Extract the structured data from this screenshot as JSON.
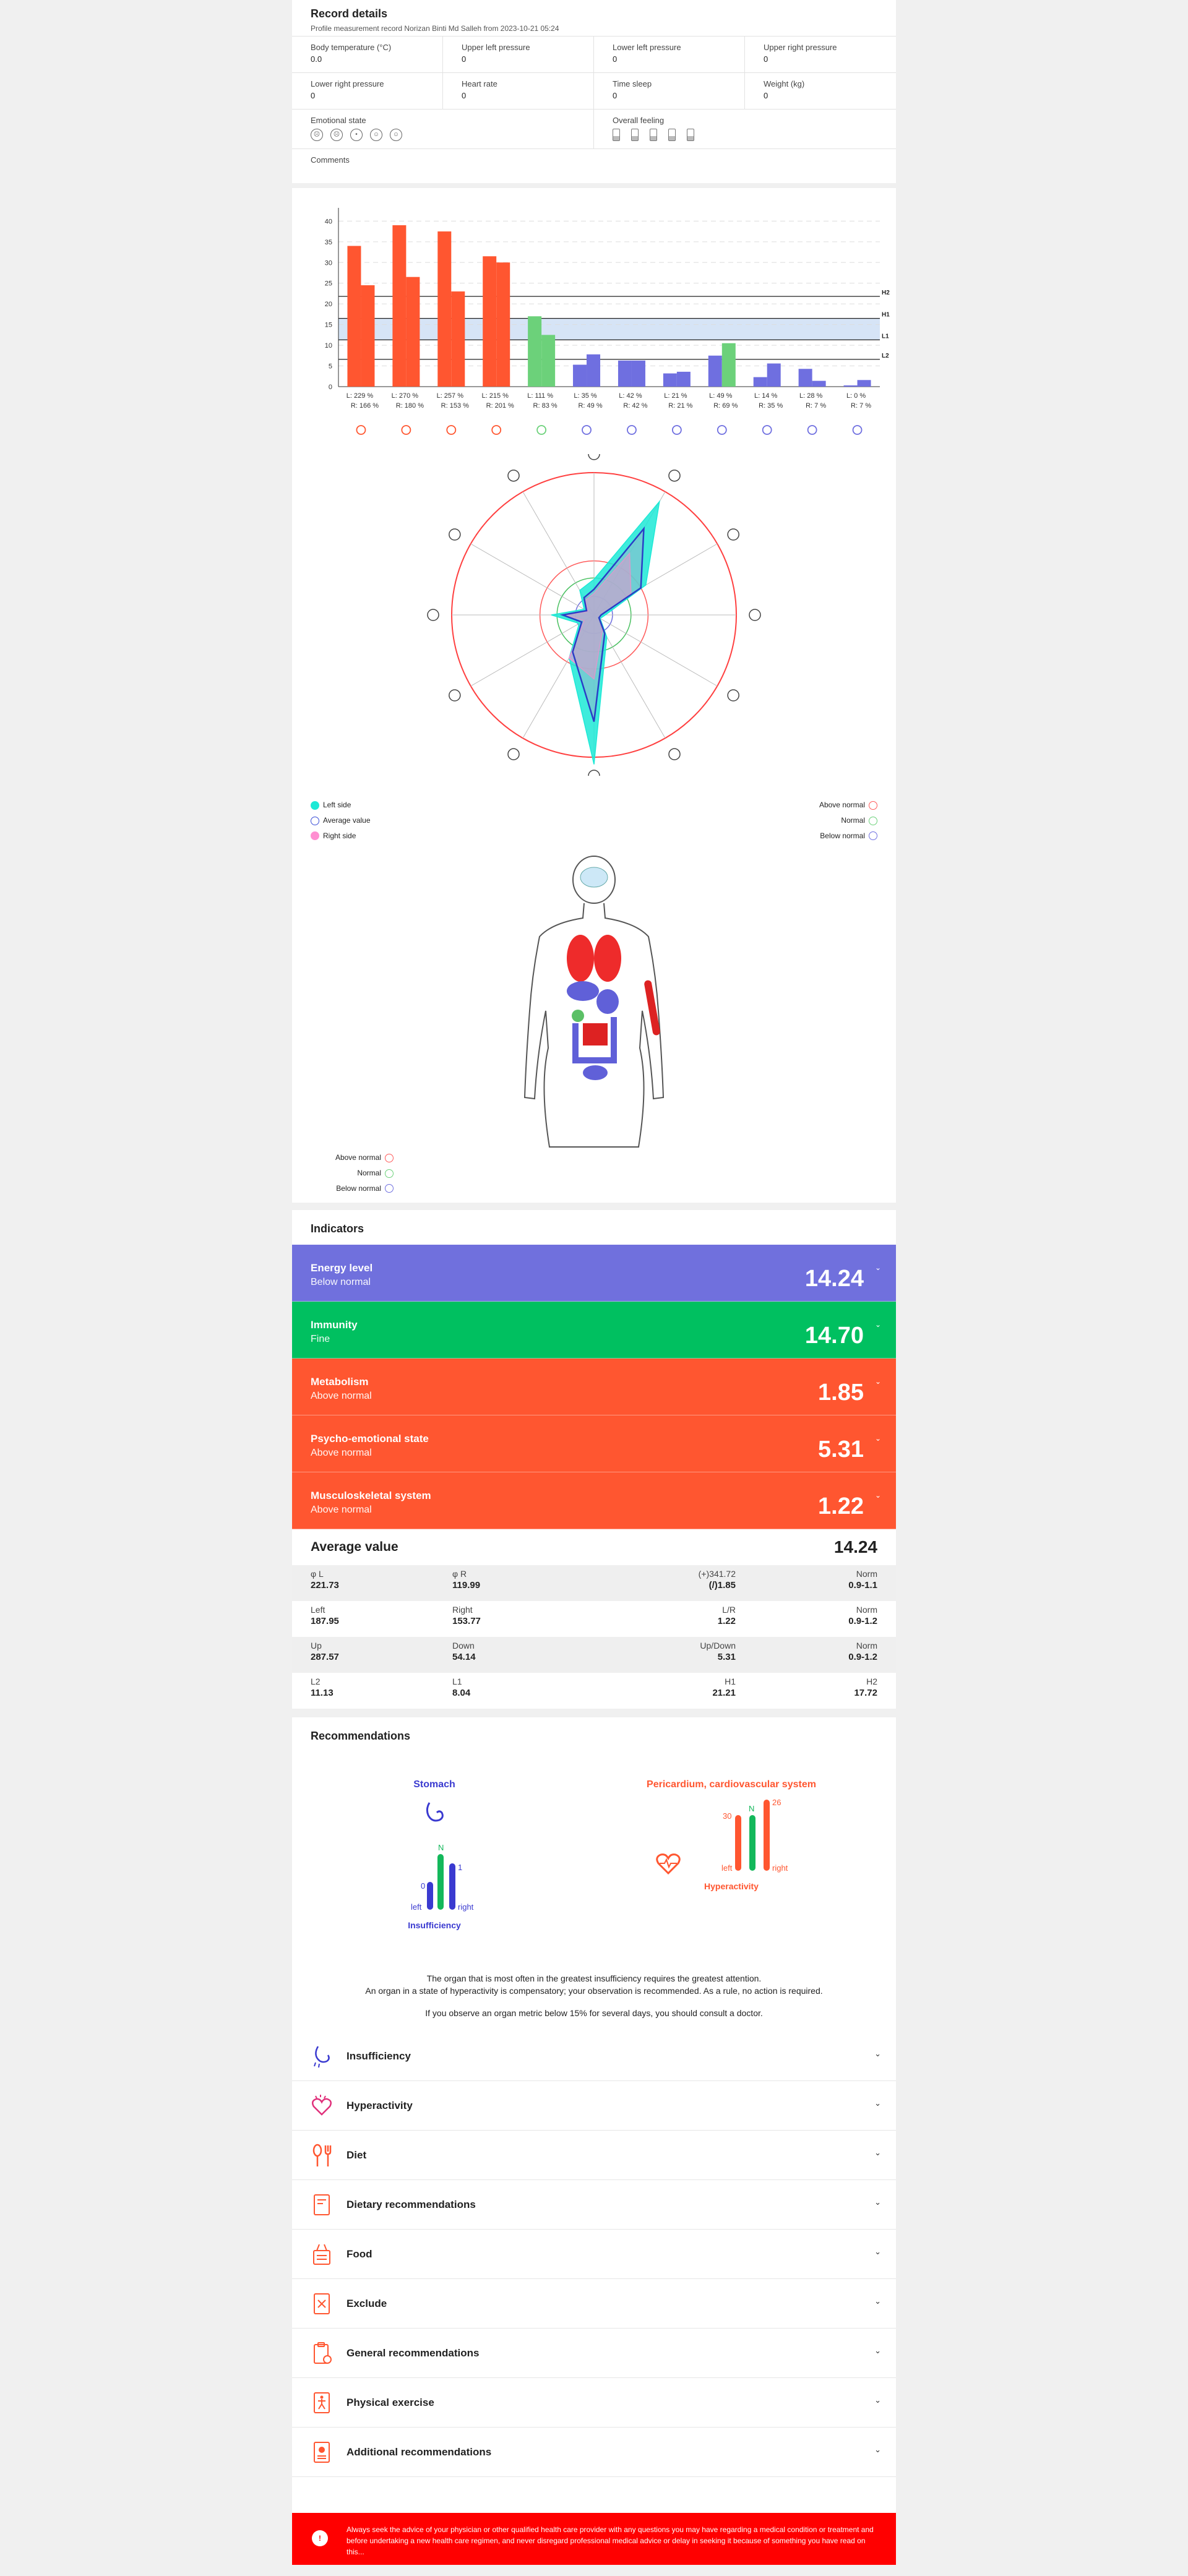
{
  "record": {
    "title": "Record details",
    "subtitle": "Profile measurement record Norizan Binti Md Salleh from 2023-10-21 05:24",
    "fields": [
      {
        "label": "Body temperature (°C)",
        "value": "0.0"
      },
      {
        "label": "Upper left pressure",
        "value": "0"
      },
      {
        "label": "Lower left pressure",
        "value": "0"
      },
      {
        "label": "Upper right pressure",
        "value": "0"
      },
      {
        "label": "Lower right pressure",
        "value": "0"
      },
      {
        "label": "Heart rate",
        "value": "0"
      },
      {
        "label": "Time sleep",
        "value": "0"
      },
      {
        "label": "Weight (kg)",
        "value": "0"
      }
    ],
    "emotional_label": "Emotional state",
    "overall_label": "Overall feeling",
    "comments_label": "Comments"
  },
  "chart_data": [
    {
      "type": "bar",
      "ylim": [
        0,
        42
      ],
      "yticks": [
        0,
        5,
        10,
        15,
        20,
        25,
        30,
        35,
        40
      ],
      "reference_lines": [
        {
          "label": "H2",
          "value": 21.8
        },
        {
          "label": "H1",
          "value": 16.5
        },
        {
          "label": "L1",
          "value": 11.3
        },
        {
          "label": "L2",
          "value": 6.6
        }
      ],
      "groups": [
        {
          "left": 34,
          "right": 24.5,
          "label_l": "L: 229 %",
          "label_r": "R: 166 %",
          "color": "#ff5630"
        },
        {
          "left": 39,
          "right": 26.5,
          "label_l": "L: 270 %",
          "label_r": "R: 180 %",
          "color": "#ff5630"
        },
        {
          "left": 37.5,
          "right": 23,
          "label_l": "L: 257 %",
          "label_r": "R: 153 %",
          "color": "#ff5630"
        },
        {
          "left": 31.5,
          "right": 30,
          "label_l": "L: 215 %",
          "label_r": "R: 201 %",
          "color": "#ff5630"
        },
        {
          "left": 17,
          "right": 12.5,
          "label_l": "L: 111 %",
          "label_r": "R: 83 %",
          "color": "#6cd17a"
        },
        {
          "left": 5.3,
          "right": 7.8,
          "label_l": "L: 35 %",
          "label_r": "R: 49 %",
          "color": "#6f6fe0"
        },
        {
          "left": 6.3,
          "right": 6.3,
          "label_l": "L: 42 %",
          "label_r": "R: 42 %",
          "color": "#6f6fe0"
        },
        {
          "left": 3.2,
          "right": 3.6,
          "label_l": "L: 21 %",
          "label_r": "R: 21 %",
          "color": "#6f6fe0"
        },
        {
          "left": 7.5,
          "right": 10.5,
          "label_l": "L: 49 %",
          "label_r": "R: 69 %",
          "color": "#6f6fe0",
          "right_color": "#6cd17a"
        },
        {
          "left": 2.3,
          "right": 5.6,
          "label_l": "L: 14 %",
          "label_r": "R: 35 %",
          "color": "#6f6fe0"
        },
        {
          "left": 4.3,
          "right": 1.4,
          "label_l": "L: 28 %",
          "label_r": "R: 7 %",
          "color": "#6f6fe0"
        },
        {
          "left": 0.3,
          "right": 1.6,
          "label_l": "L: 0 %",
          "label_r": "R: 7 %",
          "color": "#6f6fe0"
        }
      ]
    },
    {
      "type": "radar",
      "axes_count": 12,
      "left": [
        0.25,
        0.92,
        0.42,
        0.08,
        0.05,
        0.18,
        1.05,
        0.35,
        0.12,
        0.3,
        0.08,
        0.2
      ],
      "average": [
        0.18,
        0.7,
        0.38,
        0.05,
        0.04,
        0.15,
        0.75,
        0.3,
        0.1,
        0.22,
        0.06,
        0.14
      ],
      "right": [
        0.15,
        0.5,
        0.3,
        0.05,
        0.04,
        0.12,
        0.45,
        0.35,
        0.08,
        0.2,
        0.05,
        0.12
      ],
      "legend": [
        {
          "label": "Left side",
          "color": "#1de9d6"
        },
        {
          "label": "Average value",
          "color": "#3a4ed6"
        },
        {
          "label": "Right side",
          "color": "#ff8fd1"
        }
      ],
      "legend_right": [
        {
          "label": "Above normal",
          "color": "#ff5a5a"
        },
        {
          "label": "Normal",
          "color": "#6cd17a"
        },
        {
          "label": "Below normal",
          "color": "#6f6fe0"
        }
      ]
    }
  ],
  "body_legend": [
    {
      "label": "Above normal",
      "color": "#ff5a5a"
    },
    {
      "label": "Normal",
      "color": "#6cd17a"
    },
    {
      "label": "Below normal",
      "color": "#6f6fe0"
    }
  ],
  "indicators": {
    "title": "Indicators",
    "items": [
      {
        "name": "Energy level",
        "status": "Below normal",
        "value": "14.24",
        "color": "#7070dd"
      },
      {
        "name": "Immunity",
        "status": "Fine",
        "value": "14.70",
        "color": "#00c060"
      },
      {
        "name": "Metabolism",
        "status": "Above normal",
        "value": "1.85",
        "color": "#ff5630"
      },
      {
        "name": "Psycho-emotional state",
        "status": "Above normal",
        "value": "5.31",
        "color": "#ff5630"
      },
      {
        "name": "Musculoskeletal system",
        "status": "Above normal",
        "value": "1.22",
        "color": "#ff5630"
      }
    ],
    "average_label": "Average value",
    "average_value": "14.24",
    "metrics": [
      [
        {
          "a": "φ L",
          "b": "221.73"
        },
        {
          "a": "φ R",
          "b": "119.99"
        },
        {
          "a": "(+)341.72",
          "b": "(/)1.85"
        },
        {
          "a": "Norm",
          "b": "0.9-1.1"
        }
      ],
      [
        {
          "a": "Left",
          "b": "187.95"
        },
        {
          "a": "Right",
          "b": "153.77"
        },
        {
          "a": "L/R",
          "b": "1.22"
        },
        {
          "a": "Norm",
          "b": "0.9-1.2"
        }
      ],
      [
        {
          "a": "Up",
          "b": "287.57"
        },
        {
          "a": "Down",
          "b": "54.14"
        },
        {
          "a": "Up/Down",
          "b": "5.31"
        },
        {
          "a": "Norm",
          "b": "0.9-1.2"
        }
      ],
      [
        {
          "a": "L2",
          "b": "11.13"
        },
        {
          "a": "L1",
          "b": "8.04"
        },
        {
          "a": "H1",
          "b": "21.21"
        },
        {
          "a": "H2",
          "b": "17.72"
        }
      ]
    ]
  },
  "recommendations": {
    "title": "Recommendations",
    "organs": [
      {
        "name": "Stomach",
        "color": "#3a3ad0",
        "left_val": "0",
        "mid": "N",
        "right_val": "1",
        "left_word": "left",
        "right_word": "right",
        "status": "Insufficiency"
      },
      {
        "name": "Pericardium, cardiovascular system",
        "color": "#ff5630",
        "left_val": "30",
        "mid": "N",
        "right_val": "26",
        "left_word": "left",
        "right_word": "right",
        "status": "Hyperactivity"
      }
    ],
    "note1": "The organ that is most often in the greatest insufficiency requires the greatest attention.",
    "note2": "An organ in a state of hyperactivity is compensatory; your observation is recommended. As a rule, no action is required.",
    "note3": "If you observe an organ metric below 15% for several days, you should consult a doctor.",
    "sections": [
      "Insufficiency",
      "Hyperactivity",
      "Diet",
      "Dietary recommendations",
      "Food",
      "Exclude",
      "General recommendations",
      "Physical exercise",
      "Additional recommendations"
    ],
    "disclaimer": "Always seek the advice of your physician or other qualified health care provider with any questions you may have regarding a medical condition or treatment and before undertaking a new health care regimen, and never disregard professional medical advice or delay in seeking it because of something you have read on this..."
  }
}
